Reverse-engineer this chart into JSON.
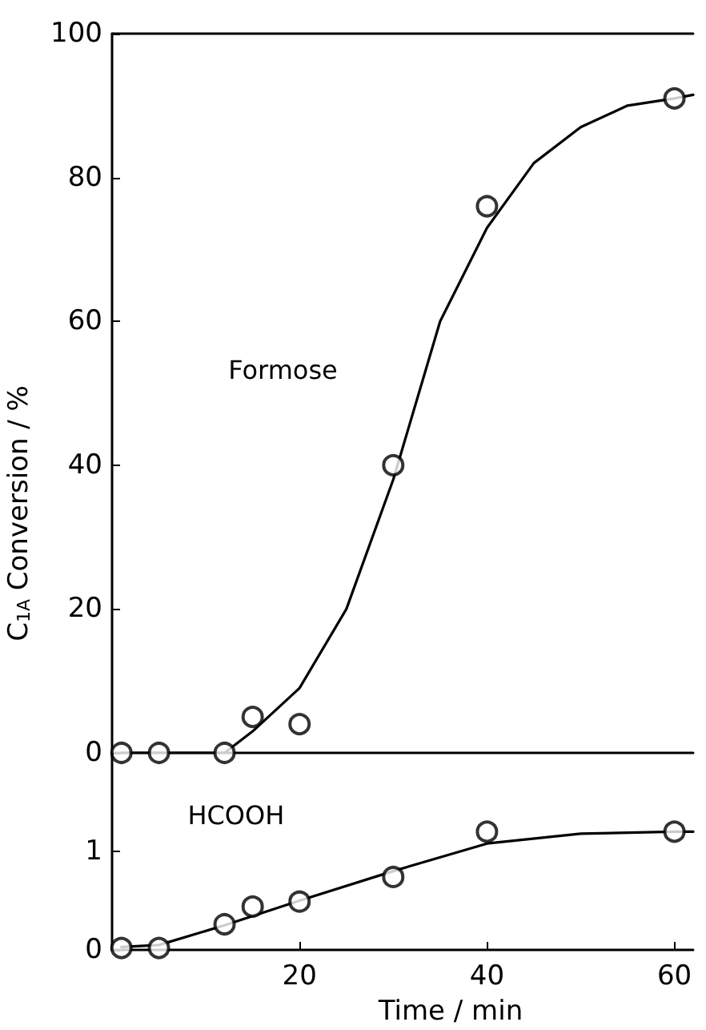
{
  "chart_data": [
    {
      "type": "scatter",
      "ylabel": "C$_{1A}$ Conversion / %",
      "xlim": [
        0,
        62
      ],
      "ylim": [
        0,
        100
      ],
      "yticks": [
        0,
        20,
        40,
        60,
        80,
        100
      ],
      "tick_labels": "y",
      "grid": false,
      "legend": false,
      "series": [
        {
          "name": "Formose",
          "color": "#000000",
          "marker": "circle",
          "x": [
            1,
            5,
            12,
            15,
            20,
            30,
            40,
            60
          ],
          "values": [
            0,
            0,
            0,
            5,
            4,
            40,
            76,
            91
          ]
        },
        {
          "type": "line",
          "color": "#000000",
          "marker": "none",
          "line_style": "solid",
          "x": [
            1,
            5,
            12,
            15,
            20,
            25,
            30,
            35,
            40,
            45,
            50,
            55,
            60,
            62
          ],
          "values": [
            0,
            0,
            0,
            3,
            9,
            20,
            38,
            60,
            73,
            82,
            87,
            90,
            91,
            91.5
          ]
        }
      ]
    },
    {
      "type": "scatter",
      "xlabel": "Time / min",
      "xlim": [
        0,
        62
      ],
      "xticks": [
        20,
        40,
        60
      ],
      "ylim": [
        0,
        2
      ],
      "yticks": [
        0,
        1
      ],
      "grid": false,
      "legend": false,
      "series": [
        {
          "name": "HCOOH",
          "color": "#000000",
          "marker": "circle",
          "x": [
            1,
            5,
            12,
            15,
            20,
            30,
            40,
            60
          ],
          "values": [
            0.02,
            0.02,
            0.26,
            0.44,
            0.49,
            0.74,
            1.2,
            1.2
          ]
        },
        {
          "type": "line",
          "color": "#000000",
          "marker": "none",
          "line_style": "solid",
          "x": [
            1,
            5,
            12,
            20,
            30,
            40,
            50,
            60,
            62
          ],
          "values": [
            0.03,
            0.05,
            0.25,
            0.5,
            0.8,
            1.08,
            1.18,
            1.2,
            1.2
          ]
        }
      ]
    }
  ]
}
